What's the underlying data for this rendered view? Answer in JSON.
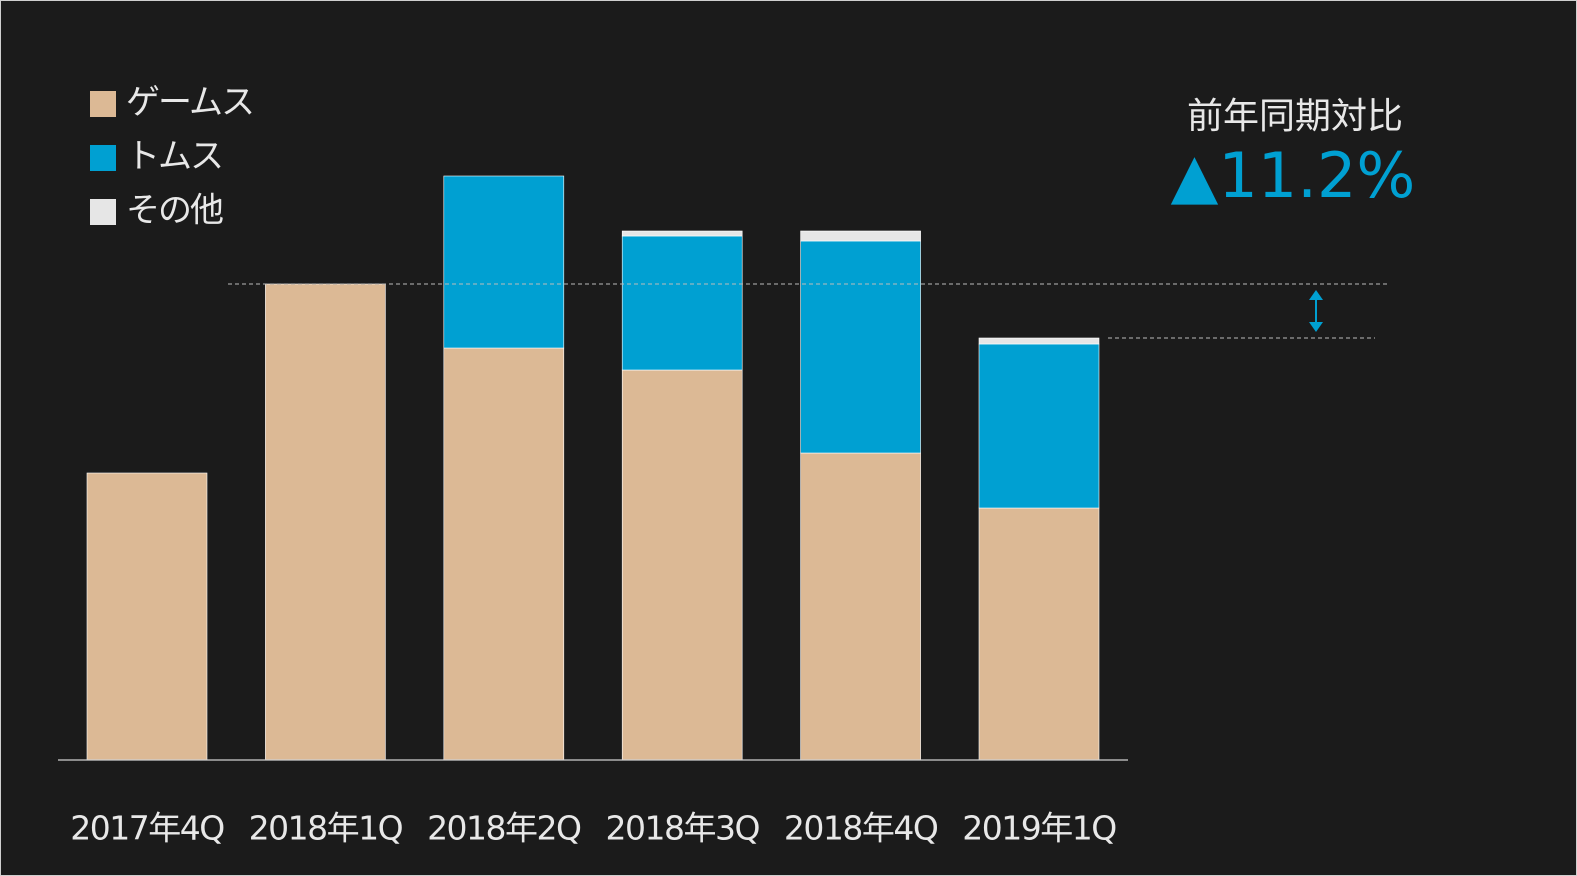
{
  "chart_data": {
    "type": "stacked_bar",
    "categories": [
      "2017年4Q",
      "2018年1Q",
      "2018年2Q",
      "2018年3Q",
      "2018年4Q",
      "2019年1Q"
    ],
    "series": [
      {
        "name": "ゲームス",
        "color": "#dcb995",
        "values": [
          287,
          476,
          412,
          390,
          307,
          252
        ]
      },
      {
        "name": "トムス",
        "color": "#00a0d2",
        "values": [
          0,
          0,
          172,
          134,
          212,
          164
        ]
      },
      {
        "name": "その他",
        "color": "#e6e6e6",
        "values": [
          0,
          0,
          0,
          5,
          10,
          6
        ]
      }
    ],
    "annotation": {
      "label": "前年同期対比",
      "value": "▲11.2%"
    }
  }
}
